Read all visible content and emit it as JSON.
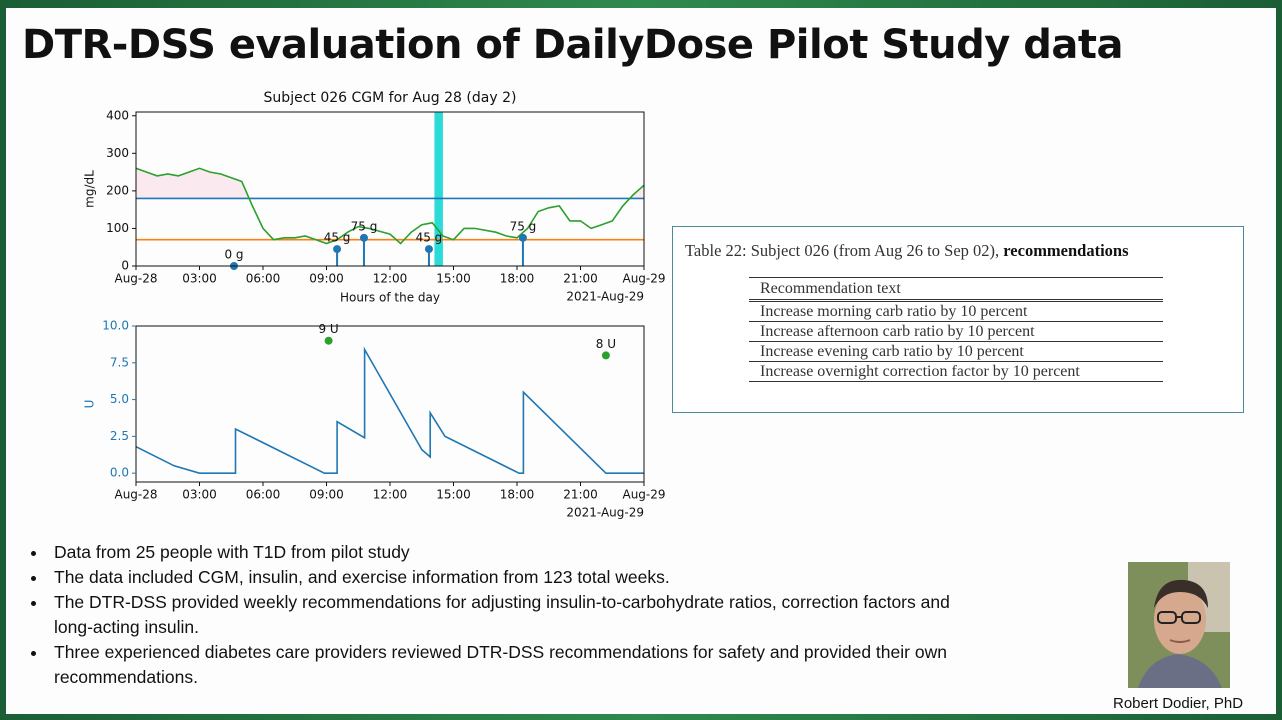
{
  "title": "DTR-DSS evaluation of DailyDose Pilot Study data",
  "chart_data": [
    {
      "type": "line",
      "title": "Subject 026 CGM for Aug 28 (day 2)",
      "xlabel": "Hours of the day",
      "ylabel": "mg/dL",
      "x_offset_label": "2021-Aug-29",
      "xlim": [
        0,
        24
      ],
      "xticks": [
        {
          "value": 0,
          "label": "Aug-28"
        },
        {
          "value": 3,
          "label": "03:00"
        },
        {
          "value": 6,
          "label": "06:00"
        },
        {
          "value": 9,
          "label": "09:00"
        },
        {
          "value": 12,
          "label": "12:00"
        },
        {
          "value": 15,
          "label": "15:00"
        },
        {
          "value": 18,
          "label": "18:00"
        },
        {
          "value": 21,
          "label": "21:00"
        },
        {
          "value": 24,
          "label": "Aug-29"
        }
      ],
      "ylim": [
        0,
        410
      ],
      "yticks": [
        0,
        100,
        200,
        300,
        400
      ],
      "line": {
        "color": "#2ca02c",
        "x": [
          0,
          0.5,
          1,
          1.5,
          2,
          2.5,
          3,
          3.5,
          4,
          4.5,
          5,
          5.5,
          6,
          6.5,
          7,
          7.5,
          8,
          8.5,
          9,
          9.5,
          10,
          10.5,
          11,
          12,
          12.5,
          13,
          13.5,
          14,
          14.5,
          15,
          15.5,
          16,
          17,
          17.5,
          18,
          18.5,
          19,
          19.5,
          20,
          20.5,
          21,
          21.5,
          22,
          22.5,
          23,
          23.5,
          24
        ],
        "values": [
          260,
          250,
          240,
          245,
          240,
          250,
          260,
          250,
          245,
          235,
          225,
          160,
          100,
          70,
          75,
          75,
          80,
          70,
          60,
          70,
          90,
          105,
          100,
          85,
          60,
          90,
          110,
          115,
          80,
          70,
          100,
          100,
          90,
          80,
          75,
          100,
          145,
          155,
          160,
          120,
          120,
          100,
          110,
          120,
          160,
          190,
          215
        ]
      },
      "hlines": [
        {
          "value": 180,
          "color": "#1f77b4"
        },
        {
          "value": 70,
          "color": "#ff7f0e"
        }
      ],
      "fill_above_color": "#fbe9f0",
      "highlight": {
        "x": [
          14.1,
          14.5
        ],
        "color": "#2adbd8"
      },
      "stems": {
        "color": "#1f77b4",
        "x": [
          4.63,
          9.5,
          10.77,
          13.84,
          18.28
        ],
        "values": [
          0,
          45,
          75,
          45,
          75
        ],
        "value_labels": [
          "0 g",
          "45 g",
          "75 g",
          "45 g",
          "75 g"
        ]
      }
    },
    {
      "type": "line",
      "ylabel": "U",
      "tick_color": "#1f77b4",
      "x_offset_label": "2021-Aug-29",
      "xlim": [
        0,
        24
      ],
      "xticks": [
        {
          "value": 0,
          "label": "Aug-28"
        },
        {
          "value": 3,
          "label": "03:00"
        },
        {
          "value": 6,
          "label": "06:00"
        },
        {
          "value": 9,
          "label": "09:00"
        },
        {
          "value": 12,
          "label": "12:00"
        },
        {
          "value": 15,
          "label": "15:00"
        },
        {
          "value": 18,
          "label": "18:00"
        },
        {
          "value": 21,
          "label": "21:00"
        },
        {
          "value": 24,
          "label": "Aug-29"
        }
      ],
      "ylim": [
        -0.6,
        10
      ],
      "yticks": [
        {
          "value": 0,
          "label": "0.0"
        },
        {
          "value": 2.5,
          "label": "2.5"
        },
        {
          "value": 5,
          "label": "5.0"
        },
        {
          "value": 7.5,
          "label": "7.5"
        },
        {
          "value": 10,
          "label": "10.0"
        }
      ],
      "line": {
        "color": "#1f77b4",
        "x": [
          0,
          1.8,
          3,
          4.7,
          4.7,
          8.9,
          9.5,
          9.5,
          10.8,
          10.8,
          13.5,
          13.9,
          13.9,
          14.6,
          18.1,
          18.3,
          18.3,
          22.2,
          24
        ],
        "values": [
          1.8,
          0.5,
          0,
          0,
          3.0,
          0,
          0,
          3.5,
          2.4,
          8.4,
          1.6,
          1.1,
          4.1,
          2.5,
          0,
          0,
          5.5,
          0,
          0
        ]
      },
      "points": {
        "color": "#2ca02c",
        "x": [
          9.1,
          22.2
        ],
        "values": [
          9,
          8
        ],
        "value_labels": [
          "9 U",
          "8 U"
        ]
      }
    }
  ],
  "table": {
    "caption": "Table 22: Subject 026 (from Aug 26 to Sep 02), ",
    "caption_bold": "recommendations",
    "header": "Recommendation text",
    "rows": [
      "Increase morning carb ratio by 10 percent",
      "Increase afternoon carb ratio by 10 percent",
      "Increase evening carb ratio by 10 percent",
      "Increase overnight correction factor by 10 percent"
    ]
  },
  "bullets": [
    "Data from 25 people with T1D from pilot study",
    "The data included CGM, insulin, and exercise information from 123 total weeks.",
    "The DTR-DSS provided weekly recommendations for adjusting insulin-to-carbohydrate ratios, correction factors and long-acting insulin.",
    "Three experienced diabetes care providers reviewed DTR-DSS recommendations for safety and provided their own recommendations."
  ],
  "photo_caption": "Robert Dodier, PhD"
}
